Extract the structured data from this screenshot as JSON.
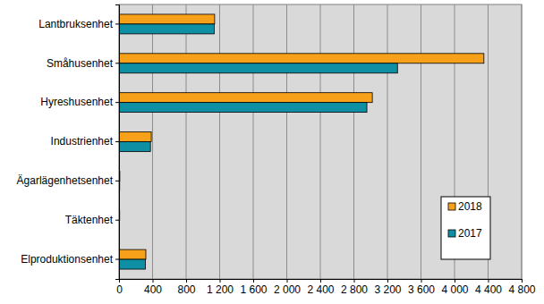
{
  "chart_data": {
    "type": "bar",
    "orientation": "horizontal",
    "categories": [
      "Lantbruksenhet",
      "Småhusenhet",
      "Hyreshusenhet",
      "Industrienhet",
      "Ägarlägenhetsenhet",
      "Täktenhet",
      "Elproduktionsenhet"
    ],
    "series": [
      {
        "name": "2018",
        "color": "#f7a11a",
        "values": [
          1140,
          4350,
          3020,
          385,
          10,
          8,
          320
        ]
      },
      {
        "name": "2017",
        "color": "#0f8fa4",
        "values": [
          1135,
          3320,
          2955,
          375,
          8,
          6,
          315
        ]
      }
    ],
    "xlim": [
      0,
      4800
    ],
    "xticks": [
      0,
      400,
      800,
      {
        "value": 1200,
        "label": "1 200"
      },
      {
        "value": 1600,
        "label": "1 600"
      },
      {
        "value": 2000,
        "label": "2 000"
      },
      {
        "value": 2400,
        "label": "2 400"
      },
      {
        "value": 2800,
        "label": "2 800"
      },
      {
        "value": 3200,
        "label": "3 200"
      },
      {
        "value": 3600,
        "label": "3 600"
      },
      {
        "value": 4000,
        "label": "4 000"
      },
      {
        "value": 4400,
        "label": "4 400"
      },
      {
        "value": 4800,
        "label": "4 800"
      }
    ],
    "grid": true,
    "legend": "lower right"
  }
}
